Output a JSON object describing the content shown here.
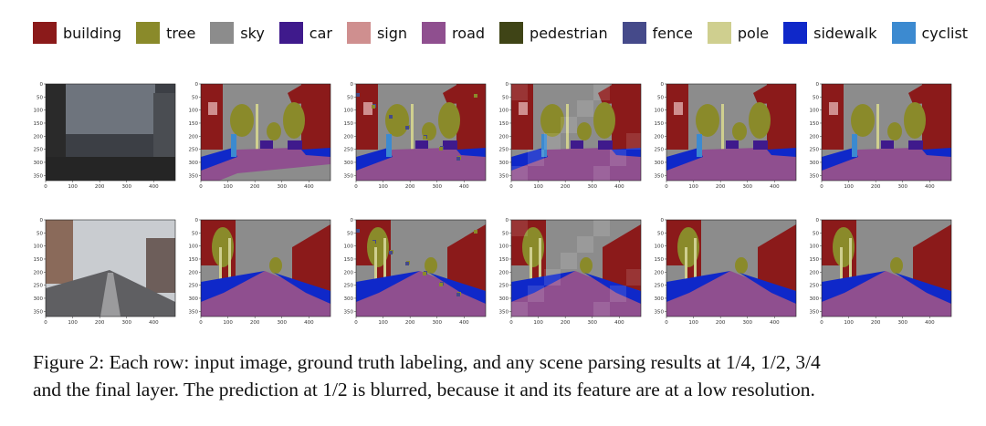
{
  "legend": [
    {
      "label": "building",
      "color": "#8b1a1a"
    },
    {
      "label": "tree",
      "color": "#8a8a2a"
    },
    {
      "label": "sky",
      "color": "#8c8c8c"
    },
    {
      "label": "car",
      "color": "#3f1a8c"
    },
    {
      "label": "sign",
      "color": "#cf8f8f"
    },
    {
      "label": "road",
      "color": "#8f4f8f"
    },
    {
      "label": "pedestrian",
      "color": "#3f4416"
    },
    {
      "label": "fence",
      "color": "#454a8a"
    },
    {
      "label": "pole",
      "color": "#cfcf8f"
    },
    {
      "label": "sidewalk",
      "color": "#0f28c9"
    },
    {
      "label": "cyclist",
      "color": "#3c8ad0"
    }
  ],
  "axes": {
    "yticks": [
      "0",
      "50",
      "100",
      "150",
      "200",
      "250",
      "300",
      "350"
    ],
    "xticks": [
      "0",
      "100",
      "200",
      "300",
      "400"
    ]
  },
  "rows": [
    {
      "panels": [
        "input image",
        "ground truth labeling",
        "1/4",
        "1/2",
        "3/4",
        "final layer"
      ]
    },
    {
      "panels": [
        "input image",
        "ground truth labeling",
        "1/4",
        "1/2",
        "3/4",
        "final layer"
      ]
    }
  ],
  "caption": {
    "line1": "Figure 2: Each row: input image, ground truth labeling, and any scene parsing results at 1/4, 1/2, 3/4",
    "line2": "and the final layer. The prediction at 1/2 is blurred, because it and its feature are at a low resolution."
  }
}
